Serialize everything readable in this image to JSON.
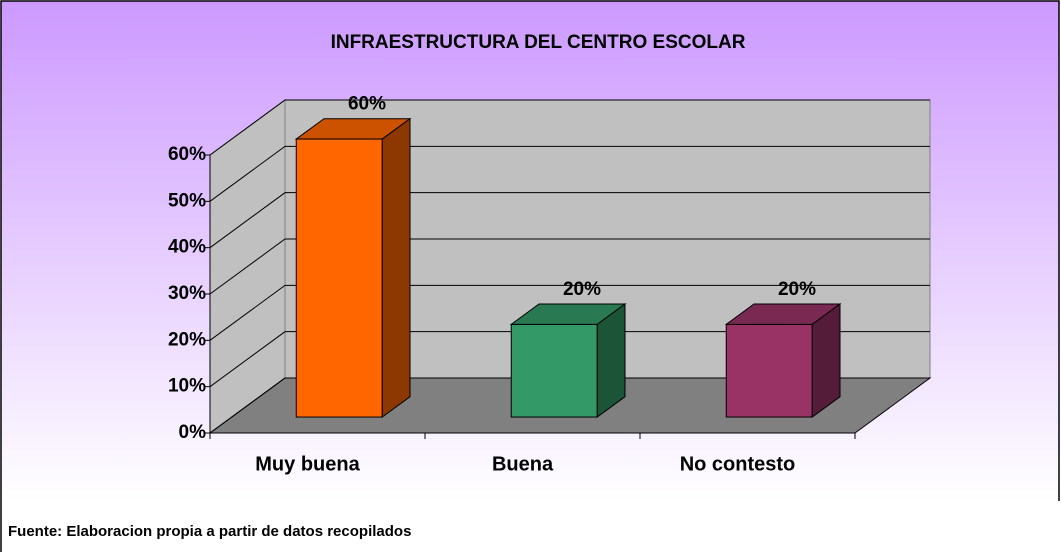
{
  "chart_data": {
    "type": "bar3d",
    "title": "INFRAESTRUCTURA DEL CENTRO ESCOLAR",
    "categories": [
      "Muy buena",
      "Buena",
      "No contesto"
    ],
    "values": [
      60,
      20,
      20
    ],
    "value_labels": [
      "60%",
      "20%",
      "20%"
    ],
    "colors": [
      "#ff6600",
      "#339966",
      "#993366"
    ],
    "ylim": [
      0,
      60
    ],
    "yticks": [
      {
        "value": 0,
        "label": "0%"
      },
      {
        "value": 10,
        "label": "10%"
      },
      {
        "value": 20,
        "label": "20%"
      },
      {
        "value": 30,
        "label": "30%"
      },
      {
        "value": 40,
        "label": "40%"
      },
      {
        "value": 50,
        "label": "50%"
      },
      {
        "value": 60,
        "label": "60%"
      }
    ],
    "grid": true,
    "source": "Fuente: Elaboracion propia a partir de datos recopilados"
  }
}
